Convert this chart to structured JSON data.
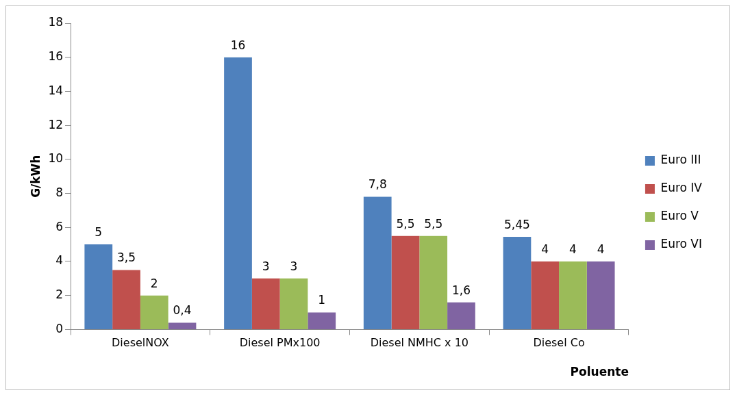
{
  "chart_data": {
    "type": "bar",
    "xlabel": "Poluente",
    "ylabel": "G/kWh",
    "categories": [
      "DieselNOX",
      "Diesel PMx100",
      "Diesel NMHC x 10",
      "Diesel Co"
    ],
    "series": [
      {
        "name": "Euro III",
        "color": "#4f81bd",
        "values": [
          5,
          16,
          7.8,
          5.45
        ],
        "value_labels": [
          "5",
          "16",
          "7,8",
          "5,45"
        ]
      },
      {
        "name": "Euro IV",
        "color": "#c0504d",
        "values": [
          3.5,
          3,
          5.5,
          4
        ],
        "value_labels": [
          "3,5",
          "3",
          "5,5",
          "4"
        ]
      },
      {
        "name": "Euro V",
        "color": "#9bbb59",
        "values": [
          2,
          3,
          5.5,
          4
        ],
        "value_labels": [
          "2",
          "3",
          "5,5",
          "4"
        ]
      },
      {
        "name": "Euro VI",
        "color": "#8064a2",
        "values": [
          0.4,
          1,
          1.6,
          4
        ],
        "value_labels": [
          "0,4",
          "1",
          "1,6",
          "4"
        ]
      }
    ],
    "ylim": [
      0,
      18
    ],
    "yticks": [
      0,
      2,
      4,
      6,
      8,
      10,
      12,
      14,
      16,
      18
    ],
    "grid": false,
    "legend": "right"
  }
}
